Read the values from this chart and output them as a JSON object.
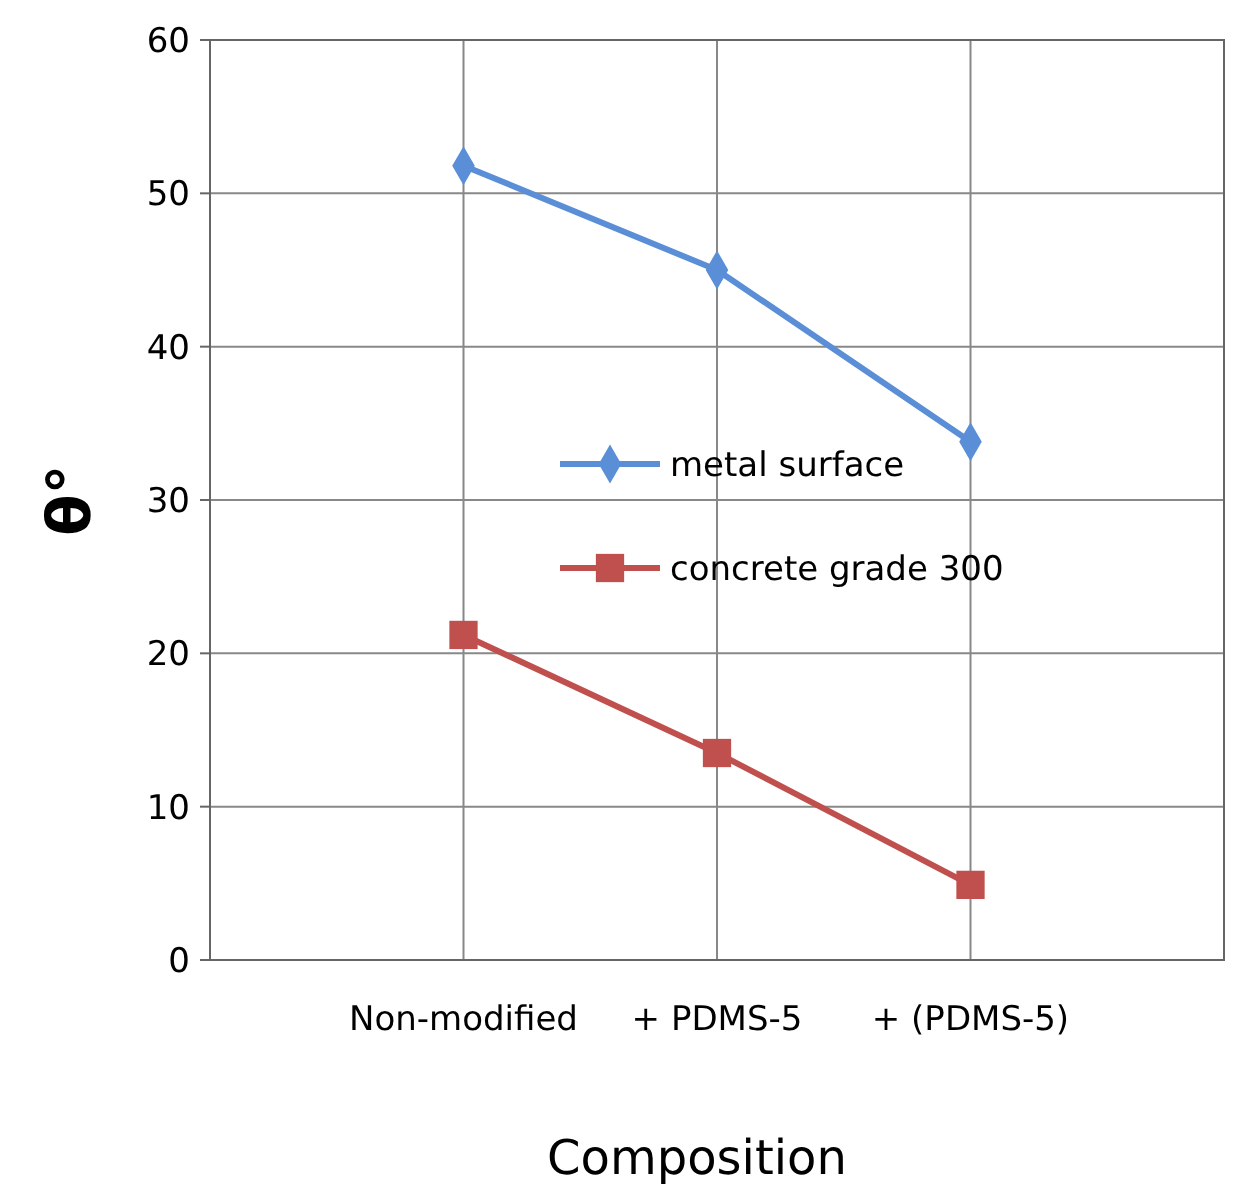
{
  "chart_data": {
    "type": "line",
    "xlabel": "Composition",
    "ylabel": "θ°",
    "categories": [
      "Non-modified",
      "+ PDMS-5",
      "+ (PDMS-5)"
    ],
    "series": [
      {
        "name": "metal surface",
        "color": "#5a8ed6",
        "marker": "diamond",
        "values": [
          51.8,
          45,
          33.8
        ]
      },
      {
        "name": "concrete grade 300",
        "color": "#c0504d",
        "marker": "square",
        "values": [
          21.2,
          13.5,
          4.9
        ]
      }
    ],
    "ylim": [
      0,
      60
    ],
    "yticks": [
      0,
      10,
      20,
      30,
      40,
      50,
      60
    ],
    "grid": true,
    "legend": "right"
  }
}
